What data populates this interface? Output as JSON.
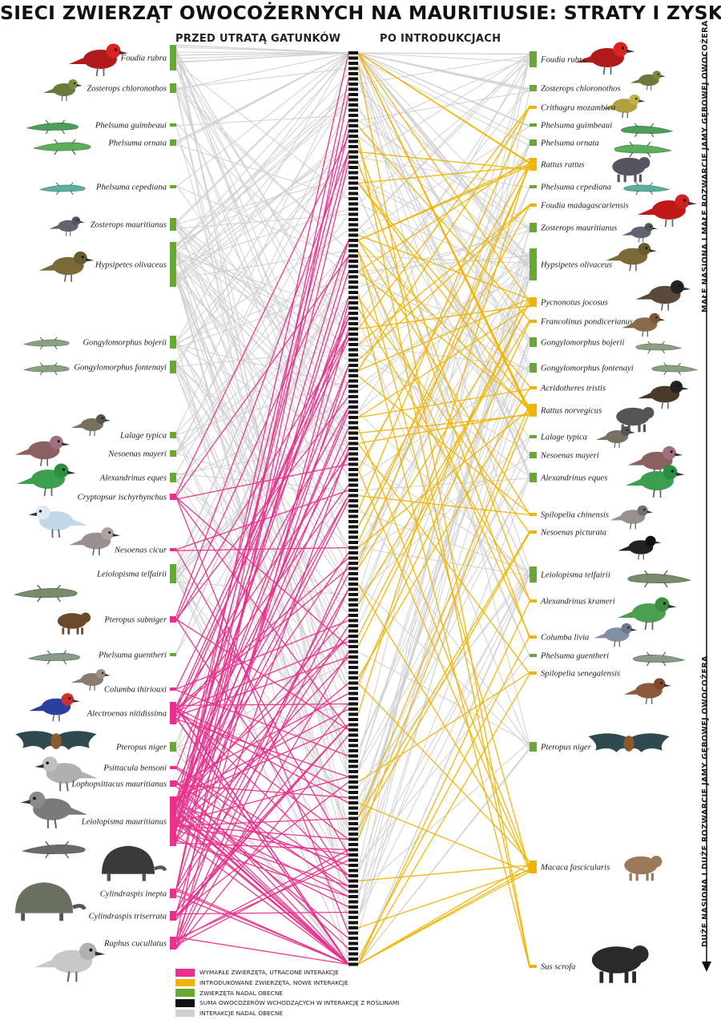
{
  "title": "SIECI ZWIERZĄT OWOCOŻERNYCH NA MAURITIUSIE: STRATY I ZYSKI",
  "headers": {
    "left": "PRZED UTRATĄ GATUNKÓW",
    "right": "PO INTRODUKCJACH"
  },
  "side_labels": {
    "top": "MAŁE NASIONA I MAŁE ROZWARCIE JAMY GĘBOWEJ OWOCOŻERA",
    "bottom": "DUŻE NASIONA I DUŻE ROZWARCIE JAMY GĘBOWEJ OWOCOŻERA"
  },
  "colors": {
    "extinct": "#e8308c",
    "introduced": "#f0b400",
    "present": "#66a832",
    "plants": "#111111",
    "retained": "#cfcfcf"
  },
  "legend": [
    {
      "color_key": "extinct",
      "label": "WYMARŁE ZWIERZĘTA, UTRACONE INTERAKCJE"
    },
    {
      "color_key": "introduced",
      "label": "INTRODUKOWANE ZWIERZĘTA, NOWE INTERAKCJE"
    },
    {
      "color_key": "present",
      "label": "ZWIERZĘTA NADAL OBECNE"
    },
    {
      "color_key": "plants",
      "label": "SUMA OWOCOŻERÓW WCHODZĄCYCH W INTERAKCJĘ Z ROŚLINAMI"
    },
    {
      "color_key": "retained",
      "label": "INTERAKCJE NADAL OBECNE"
    }
  ],
  "left_species": [
    {
      "name": "Foudia rubra",
      "status": "present",
      "weight": 8
    },
    {
      "name": "Zosterops chloronothos",
      "status": "present",
      "weight": 3
    },
    {
      "name": "Phelsuma guimbeaui",
      "status": "present",
      "weight": 1
    },
    {
      "name": "Phelsuma ornata",
      "status": "present",
      "weight": 2
    },
    {
      "name": "Phelsuma cepediana",
      "status": "present",
      "weight": 1
    },
    {
      "name": "Zosterops mauritianus",
      "status": "present",
      "weight": 4
    },
    {
      "name": "Hypsipetes olivaceus",
      "status": "present",
      "weight": 14
    },
    {
      "name": "Gongylomorphus bojerii",
      "status": "present",
      "weight": 4
    },
    {
      "name": "Gongylomorphus fontenayi",
      "status": "present",
      "weight": 4
    },
    {
      "name": "Lalage typica",
      "status": "present",
      "weight": 2
    },
    {
      "name": "Nesoenas mayeri",
      "status": "present",
      "weight": 2
    },
    {
      "name": "Alexandrinus eques",
      "status": "present",
      "weight": 3
    },
    {
      "name": "Cryptopsar ischyrhynchus",
      "status": "extinct",
      "weight": 2
    },
    {
      "name": "Nesoenas cicur",
      "status": "extinct",
      "weight": 1
    },
    {
      "name": "Leiolopisma telfairii",
      "status": "present",
      "weight": 6
    },
    {
      "name": "Pteropus subniger",
      "status": "extinct",
      "weight": 2
    },
    {
      "name": "Phelsuma guentheri",
      "status": "present",
      "weight": 1
    },
    {
      "name": "Columba thiriouxi",
      "status": "extinct",
      "weight": 1
    },
    {
      "name": "Alectroenas nitidissima",
      "status": "extinct",
      "weight": 7
    },
    {
      "name": "Pteropus niger",
      "status": "present",
      "weight": 3
    },
    {
      "name": "Psittacula bensoni",
      "status": "extinct",
      "weight": 1
    },
    {
      "name": "Lophopsittacus mauritianus",
      "status": "extinct",
      "weight": 2
    },
    {
      "name": "Leiolopisma mauritianus",
      "status": "extinct",
      "weight": 16
    },
    {
      "name": "Cylindraspis inepta",
      "status": "extinct",
      "weight": 3
    },
    {
      "name": "Cylindraspis triserrata",
      "status": "extinct",
      "weight": 3
    },
    {
      "name": "Raphus cucullatus",
      "status": "extinct",
      "weight": 4
    }
  ],
  "right_species": [
    {
      "name": "Foudia rubra",
      "status": "present",
      "weight": 5
    },
    {
      "name": "Zosterops chloronothos",
      "status": "present",
      "weight": 2
    },
    {
      "name": "Crithagra mozambica",
      "status": "introduced",
      "weight": 1
    },
    {
      "name": "Phelsuma guimbeaui",
      "status": "present",
      "weight": 1
    },
    {
      "name": "Phelsuma ornata",
      "status": "present",
      "weight": 2
    },
    {
      "name": "Rattus rattus",
      "status": "introduced",
      "weight": 4
    },
    {
      "name": "Phelsuma cepediana",
      "status": "present",
      "weight": 1
    },
    {
      "name": "Foudia madagascariensis",
      "status": "introduced",
      "weight": 1
    },
    {
      "name": "Zosterops mauritianus",
      "status": "present",
      "weight": 3
    },
    {
      "name": "Hypsipetes olivaceus",
      "status": "present",
      "weight": 10
    },
    {
      "name": "Pycnonotus jocosus",
      "status": "introduced",
      "weight": 3
    },
    {
      "name": "Francolinus pondicerianus",
      "status": "introduced",
      "weight": 1
    },
    {
      "name": "Gongylomorphus bojerii",
      "status": "present",
      "weight": 3
    },
    {
      "name": "Gongylomorphus fontenayi",
      "status": "present",
      "weight": 3
    },
    {
      "name": "Acridotheres tristis",
      "status": "introduced",
      "weight": 1
    },
    {
      "name": "Rattus norvegicus",
      "status": "introduced",
      "weight": 4
    },
    {
      "name": "Lalage typica",
      "status": "present",
      "weight": 1
    },
    {
      "name": "Nesoenas mayeri",
      "status": "present",
      "weight": 2
    },
    {
      "name": "Alexandrinus eques",
      "status": "present",
      "weight": 3
    },
    {
      "name": "Spilopelia chinensis",
      "status": "introduced",
      "weight": 1
    },
    {
      "name": "Nesoenas picturata",
      "status": "introduced",
      "weight": 1
    },
    {
      "name": "Leiolopisma telfairii",
      "status": "present",
      "weight": 5
    },
    {
      "name": "Alexandrinus krameri",
      "status": "introduced",
      "weight": 1
    },
    {
      "name": "Columba livia",
      "status": "introduced",
      "weight": 1
    },
    {
      "name": "Phelsuma guentheri",
      "status": "present",
      "weight": 1
    },
    {
      "name": "Spilopelia senegalensis",
      "status": "introduced",
      "weight": 1
    },
    {
      "name": "Pteropus niger",
      "status": "present",
      "weight": 3
    },
    {
      "name": "Macaca fascicularis",
      "status": "introduced",
      "weight": 4
    },
    {
      "name": "Sus scrofa",
      "status": "introduced",
      "weight": 1
    }
  ]
}
